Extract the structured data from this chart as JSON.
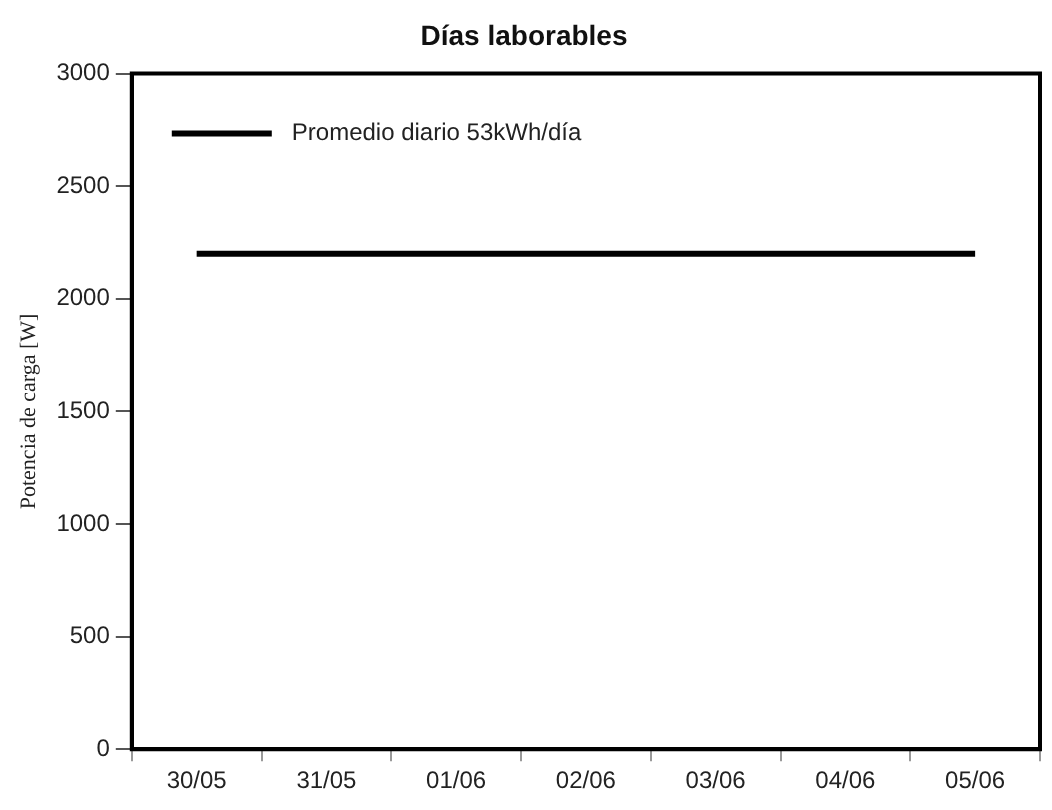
{
  "chart_data": {
    "type": "line",
    "title": "Días laborables",
    "ylabel": "Potencia de carga [W]",
    "categories": [
      "30/05",
      "31/05",
      "01/06",
      "02/06",
      "03/06",
      "04/06",
      "05/06"
    ],
    "series": [
      {
        "name": "Promedio diario 53kWh/día",
        "color": "#000000",
        "values": [
          2200,
          2200,
          2200,
          2200,
          2200,
          2200,
          2200
        ]
      }
    ],
    "ylim": [
      0,
      3000
    ],
    "yticks": [
      0,
      500,
      1000,
      1500,
      2000,
      2500,
      3000
    ],
    "grid": false,
    "legend": "top left",
    "marker": "none",
    "line_style": "solid"
  }
}
